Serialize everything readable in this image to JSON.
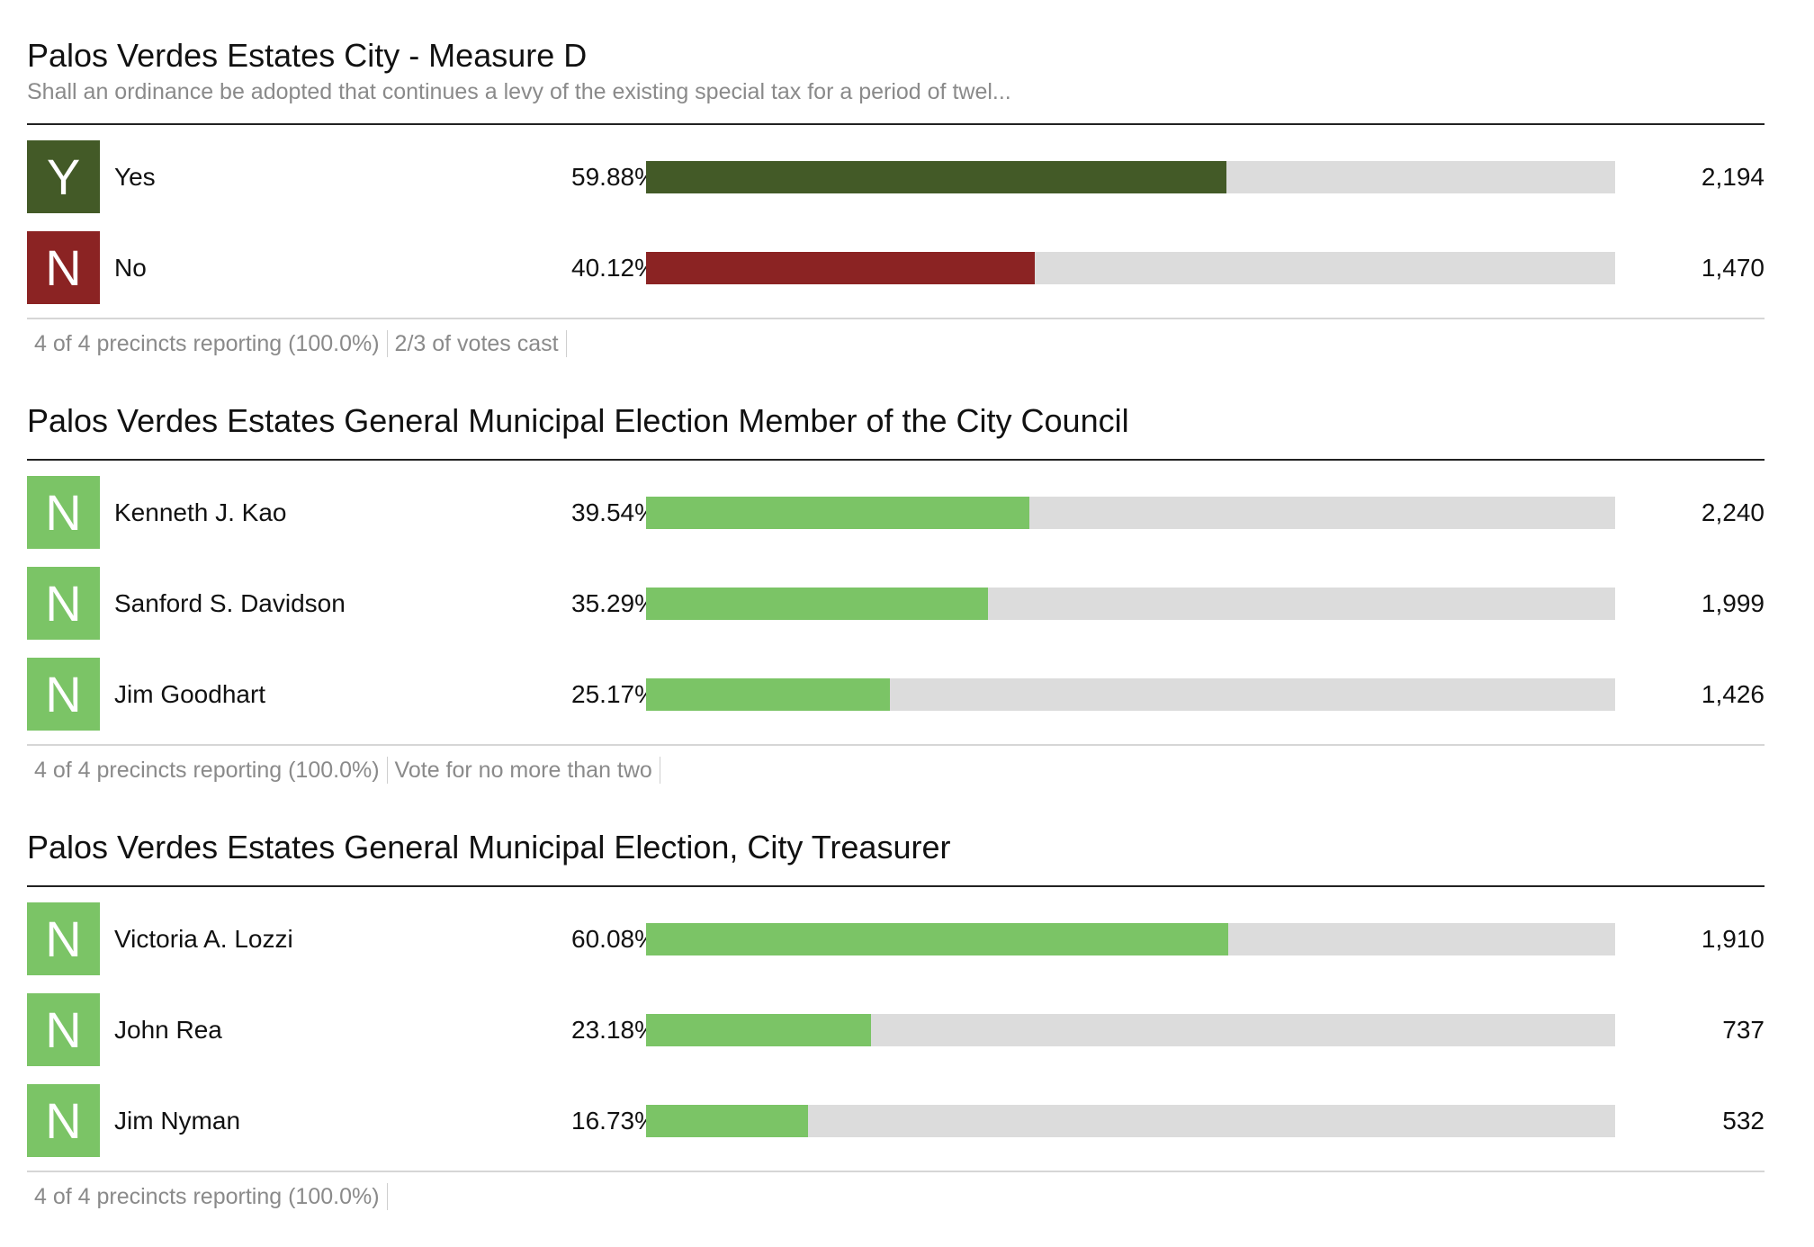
{
  "colors": {
    "yes_green": "#435a27",
    "no_red": "#8b2323",
    "candidate_green": "#7bc466",
    "track_gray": "#dcdcdc"
  },
  "races": [
    {
      "title": "Palos Verdes Estates City - Measure D",
      "description": "Shall an ordinance be adopted that continues a levy of the existing special tax for a period of twel...",
      "rows": [
        {
          "badge": "Y",
          "badge_color": "#435a27",
          "name": "Yes",
          "pct": "59.88%",
          "share": 0.5988,
          "votes": "2,194"
        },
        {
          "badge": "N",
          "badge_color": "#8b2323",
          "name": "No",
          "pct": "40.12%",
          "share": 0.4012,
          "votes": "1,470"
        }
      ],
      "footer": [
        "4 of 4 precincts reporting (100.0%)",
        "2/3 of votes cast"
      ]
    },
    {
      "title": "Palos Verdes Estates General Municipal Election Member of the City Council",
      "description": "",
      "rows": [
        {
          "badge": "N",
          "badge_color": "#7bc466",
          "name": "Kenneth J. Kao",
          "pct": "39.54%",
          "share": 0.3954,
          "votes": "2,240"
        },
        {
          "badge": "N",
          "badge_color": "#7bc466",
          "name": "Sanford S. Davidson",
          "pct": "35.29%",
          "share": 0.3529,
          "votes": "1,999"
        },
        {
          "badge": "N",
          "badge_color": "#7bc466",
          "name": "Jim Goodhart",
          "pct": "25.17%",
          "share": 0.2517,
          "votes": "1,426"
        }
      ],
      "footer": [
        "4 of 4 precincts reporting (100.0%)",
        "Vote for no more than two"
      ]
    },
    {
      "title": "Palos Verdes Estates General Municipal Election, City Treasurer",
      "description": "",
      "rows": [
        {
          "badge": "N",
          "badge_color": "#7bc466",
          "name": "Victoria A. Lozzi",
          "pct": "60.08%",
          "share": 0.6008,
          "votes": "1,910"
        },
        {
          "badge": "N",
          "badge_color": "#7bc466",
          "name": "John Rea",
          "pct": "23.18%",
          "share": 0.2318,
          "votes": "737"
        },
        {
          "badge": "N",
          "badge_color": "#7bc466",
          "name": "Jim Nyman",
          "pct": "16.73%",
          "share": 0.1673,
          "votes": "532"
        }
      ],
      "footer": [
        "4 of 4 precincts reporting (100.0%)"
      ]
    }
  ]
}
